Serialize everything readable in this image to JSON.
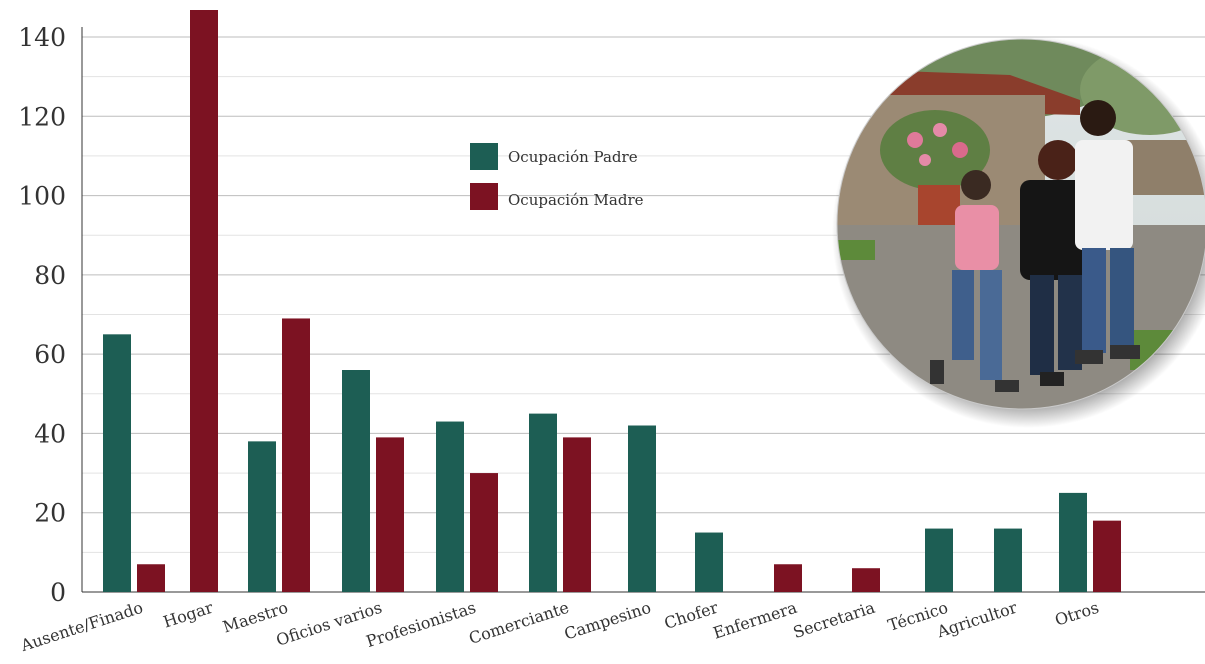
{
  "chart_data": {
    "type": "bar",
    "title": "",
    "xlabel": "",
    "ylabel": "",
    "ylim": [
      0,
      140
    ],
    "yticks": [
      0,
      20,
      40,
      60,
      80,
      100,
      120,
      140
    ],
    "grid": true,
    "legend_position": "top-center",
    "series": [
      {
        "name": "Ocupación Padre",
        "color": "#1d5e54",
        "bars": [
          {
            "category": "Ausente/Finado",
            "value": 65
          },
          {
            "category": "Maestro",
            "value": 38
          },
          {
            "category": "Oficios varios",
            "value": 56
          },
          {
            "category": "Profesionistas",
            "value": 43
          },
          {
            "category": "Comerciante",
            "value": 45
          },
          {
            "category": "Campesino",
            "value": 42
          },
          {
            "category": "Chofer",
            "value": 15
          },
          {
            "category": "Técnico",
            "value": 16
          },
          {
            "category": "Agricultor",
            "value": 16
          },
          {
            "category": "Otros",
            "value": 25
          }
        ]
      },
      {
        "name": "Ocupación Madre",
        "color": "#7c1222",
        "bars": [
          {
            "category": "Ausente/Finado",
            "value": 7
          },
          {
            "category": "Hogar",
            "value": 147
          },
          {
            "category": "Maestro",
            "value": 69
          },
          {
            "category": "Oficios varios",
            "value": 39
          },
          {
            "category": "Profesionistas",
            "value": 30
          },
          {
            "category": "Comerciante",
            "value": 39
          },
          {
            "category": "Enfermera",
            "value": 7
          },
          {
            "category": "Secretaria",
            "value": 6
          },
          {
            "category": "Otros",
            "value": 18
          }
        ]
      }
    ],
    "categories": [
      "Ausente/Finado",
      "Hogar",
      "Maestro",
      "Oficios varios",
      "Profesionistas",
      "Comerciante",
      "Campesino",
      "Chofer",
      "Enfermera",
      "Secretaria",
      "Técnico",
      "Agricultor",
      "Otros"
    ]
  },
  "photo": {
    "icon": "family-walking-photo",
    "description_hidden": true
  }
}
